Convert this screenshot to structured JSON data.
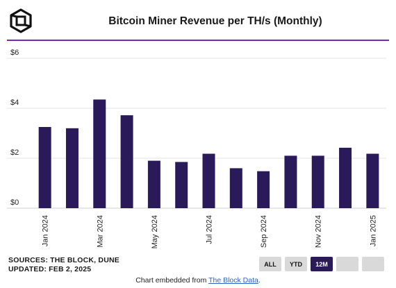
{
  "header": {
    "title": "Bitcoin Miner Revenue per TH/s (Monthly)",
    "logo_icon": "cube-logo-icon"
  },
  "chart_data": {
    "type": "bar",
    "categories": [
      "Jan 2024",
      "Feb 2024",
      "Mar 2024",
      "Apr 2024",
      "May 2024",
      "Jun 2024",
      "Jul 2024",
      "Aug 2024",
      "Sep 2024",
      "Oct 2024",
      "Nov 2024",
      "Dec 2024",
      "Jan 2025"
    ],
    "values": [
      3.25,
      3.2,
      4.35,
      3.72,
      1.9,
      1.85,
      2.18,
      1.6,
      1.48,
      2.1,
      2.1,
      2.42,
      2.18
    ],
    "x_tick_labels": [
      "Jan 2024",
      "",
      "Mar 2024",
      "",
      "May 2024",
      "",
      "Jul 2024",
      "",
      "Sep 2024",
      "",
      "Nov 2024",
      "",
      "Jan 2025"
    ],
    "y_ticks": [
      0,
      2,
      4,
      6
    ],
    "y_tick_labels": [
      "$0",
      "$2",
      "$4",
      "$6"
    ],
    "ylim": [
      0,
      6
    ],
    "title": "Bitcoin Miner Revenue per TH/s (Monthly)",
    "xlabel": "",
    "ylabel": "",
    "grid": true,
    "bar_color": "#2b1a59"
  },
  "sources": {
    "line1": "SOURCES: THE BLOCK, DUNE",
    "line2": "UPDATED: FEB 2, 2025"
  },
  "range_buttons": [
    {
      "label": "ALL",
      "active": false
    },
    {
      "label": "YTD",
      "active": false
    },
    {
      "label": "12M",
      "active": true
    },
    {
      "label": "",
      "active": false
    },
    {
      "label": "",
      "active": false
    }
  ],
  "footer": {
    "prefix": "Chart embedded from",
    "link_text": "The Block Data",
    "suffix": "."
  },
  "colors": {
    "accent_rule": "#7a2aa8",
    "bar": "#2b1a59",
    "active_button": "#2b1a59"
  }
}
